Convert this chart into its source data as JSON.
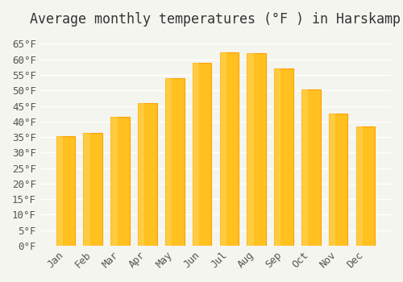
{
  "title": "Average monthly temperatures (°F ) in Harskamp",
  "months": [
    "Jan",
    "Feb",
    "Mar",
    "Apr",
    "May",
    "Jun",
    "Jul",
    "Aug",
    "Sep",
    "Oct",
    "Nov",
    "Dec"
  ],
  "values": [
    35.3,
    36.3,
    41.4,
    46.0,
    54.0,
    59.0,
    62.2,
    62.1,
    57.0,
    50.4,
    42.6,
    38.5
  ],
  "bar_color_main": "#FFC020",
  "bar_color_edge": "#FFA000",
  "background_color": "#F5F5F0",
  "grid_color": "#FFFFFF",
  "title_fontsize": 12,
  "tick_fontsize": 9,
  "ylim": [
    0,
    68
  ],
  "yticks": [
    0,
    5,
    10,
    15,
    20,
    25,
    30,
    35,
    40,
    45,
    50,
    55,
    60,
    65
  ]
}
